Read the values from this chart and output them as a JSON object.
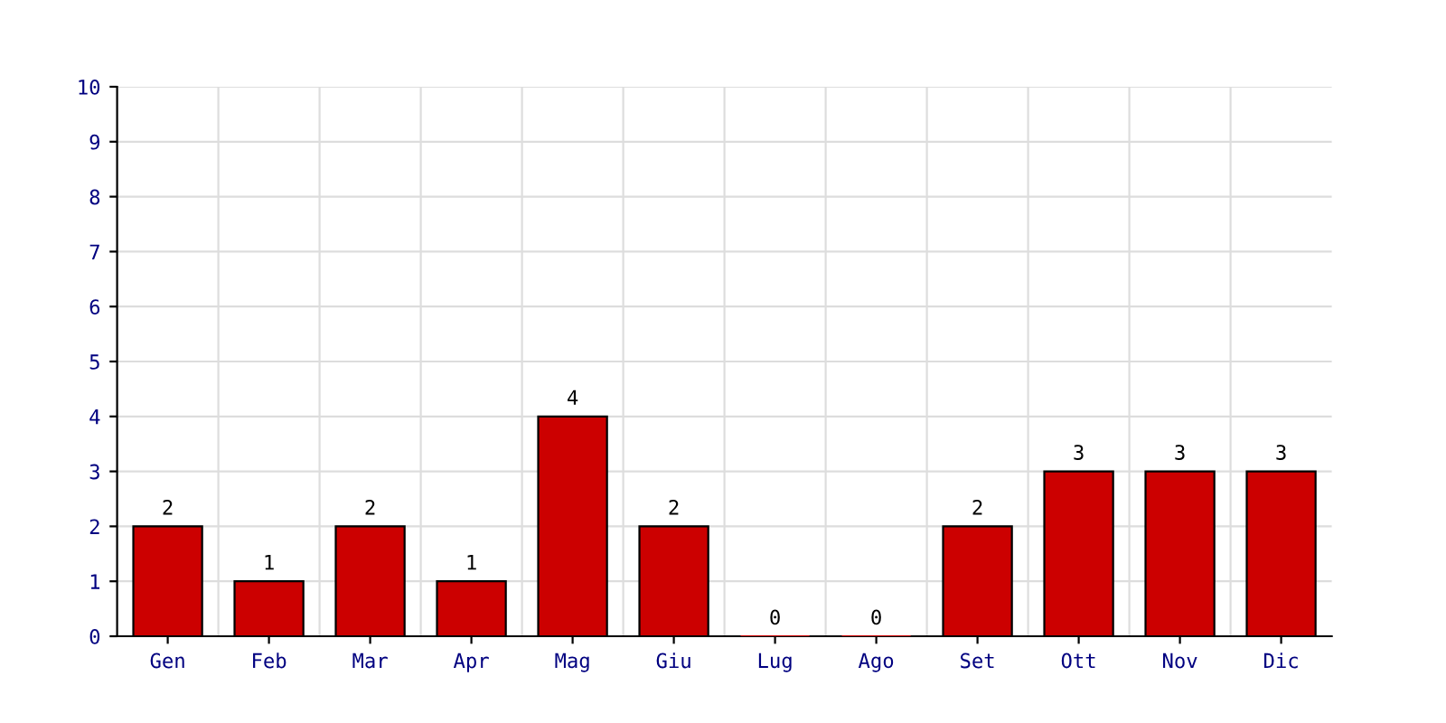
{
  "chart_data": {
    "type": "bar",
    "categories": [
      "Gen",
      "Feb",
      "Mar",
      "Apr",
      "Mag",
      "Giu",
      "Lug",
      "Ago",
      "Set",
      "Ott",
      "Nov",
      "Dic"
    ],
    "values": [
      2,
      1,
      2,
      1,
      4,
      2,
      0,
      0,
      2,
      3,
      3,
      3
    ],
    "color": "#cc0000",
    "ylim": [
      0,
      10
    ],
    "yticks": [
      0,
      1,
      2,
      3,
      4,
      5,
      6,
      7,
      8,
      9,
      10
    ],
    "grid": true,
    "data_labels": true
  }
}
